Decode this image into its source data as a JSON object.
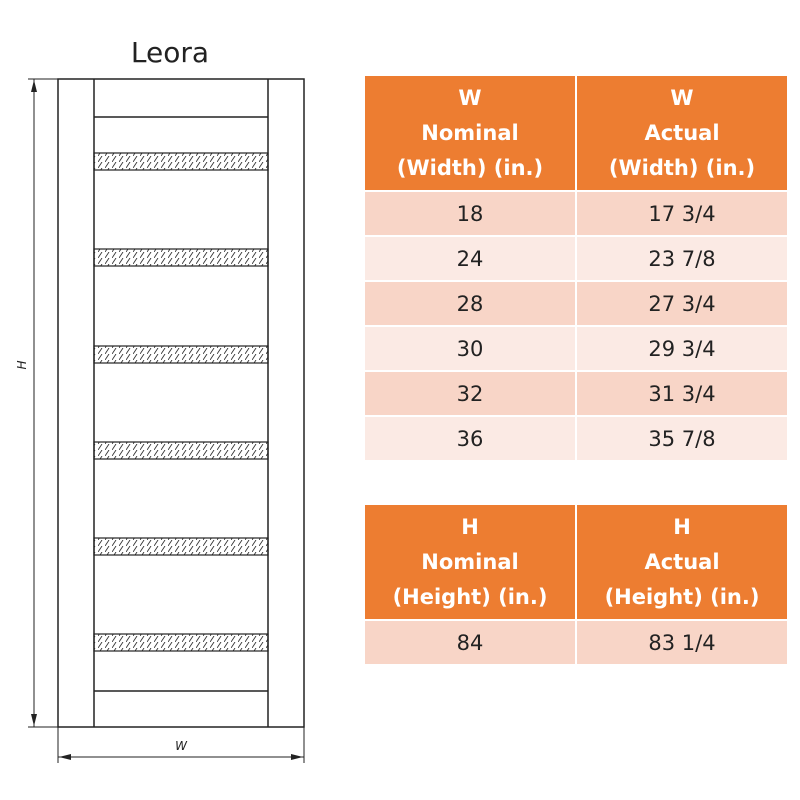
{
  "diagram": {
    "title": "Leora",
    "height_label": "H",
    "width_label": "W"
  },
  "width_table": {
    "headers": [
      {
        "line1": "W",
        "line2": "Nominal",
        "line3": "(Width) (in.)"
      },
      {
        "line1": "W",
        "line2": "Actual",
        "line3": "(Width) (in.)"
      }
    ],
    "rows": [
      {
        "nominal": "18",
        "actual": "17 3/4"
      },
      {
        "nominal": "24",
        "actual": "23 7/8"
      },
      {
        "nominal": "28",
        "actual": "27 3/4"
      },
      {
        "nominal": "30",
        "actual": "29 3/4"
      },
      {
        "nominal": "32",
        "actual": "31 3/4"
      },
      {
        "nominal": "36",
        "actual": "35 7/8"
      }
    ]
  },
  "height_table": {
    "headers": [
      {
        "line1": "H",
        "line2": "Nominal",
        "line3": "(Height) (in.)"
      },
      {
        "line1": "H",
        "line2": "Actual",
        "line3": "(Height) (in.)"
      }
    ],
    "rows": [
      {
        "nominal": "84",
        "actual": "83 1/4"
      }
    ]
  },
  "colors": {
    "header_fill": "#ED7D31",
    "row_dark": "#F8D5C7",
    "row_light": "#FBEAE4",
    "line": "#222222"
  }
}
